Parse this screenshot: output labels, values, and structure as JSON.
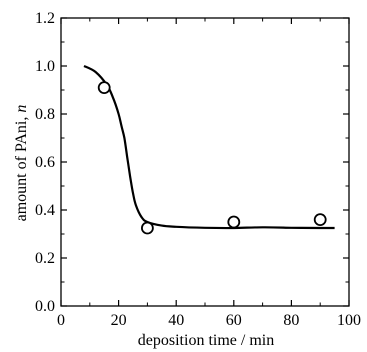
{
  "chart_data": {
    "type": "scatter",
    "xlabel": "deposition time / min",
    "ylabel_main": "amount of PAni, ",
    "ylabel_italic": "n",
    "xlim": [
      0,
      100
    ],
    "ylim": [
      0.0,
      1.2
    ],
    "x_ticks": [
      0,
      20,
      40,
      60,
      80,
      100
    ],
    "x_tick_labels": [
      "0",
      "20",
      "40",
      "60",
      "80",
      "100"
    ],
    "y_ticks": [
      0.0,
      0.2,
      0.4,
      0.6,
      0.8,
      1.0,
      1.2
    ],
    "y_tick_labels": [
      "0.0",
      "0.2",
      "0.4",
      "0.6",
      "0.8",
      "1.0",
      "1.2"
    ],
    "series": [
      {
        "kind": "markers",
        "marker": "open-circle",
        "x": [
          15,
          30,
          60,
          90
        ],
        "y": [
          0.91,
          0.325,
          0.35,
          0.36
        ]
      },
      {
        "kind": "line",
        "x": [
          8,
          12,
          16,
          18,
          20,
          21,
          22,
          23,
          24,
          25,
          26,
          28,
          30,
          35,
          40,
          50,
          60,
          70,
          80,
          90,
          95
        ],
        "y": [
          1.0,
          0.975,
          0.92,
          0.87,
          0.8,
          0.75,
          0.7,
          0.62,
          0.54,
          0.47,
          0.42,
          0.37,
          0.35,
          0.335,
          0.33,
          0.326,
          0.325,
          0.328,
          0.326,
          0.325,
          0.325
        ]
      }
    ],
    "grid": false,
    "legend": "none"
  }
}
